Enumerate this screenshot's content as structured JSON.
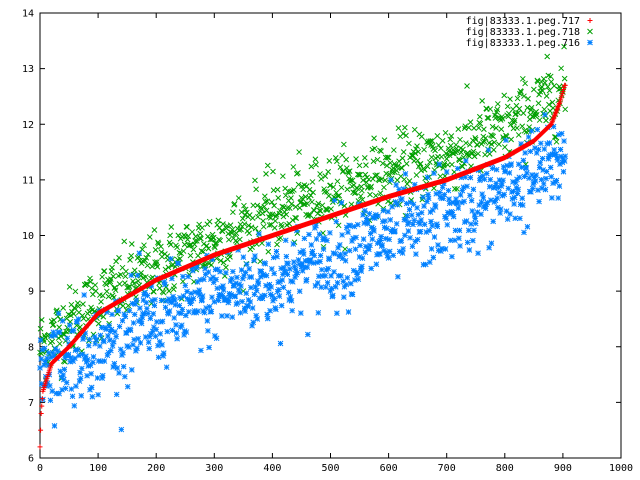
{
  "chart_data": {
    "type": "scatter",
    "title": "",
    "xlabel": "",
    "ylabel": "",
    "xlim": [
      0,
      1000
    ],
    "ylim": [
      6,
      14
    ],
    "x_ticks": [
      "0",
      "100",
      "200",
      "300",
      "400",
      "500",
      "600",
      "700",
      "800",
      "900",
      "1000"
    ],
    "y_ticks": [
      "6",
      "7",
      "8",
      "9",
      "10",
      "11",
      "12",
      "13",
      "14"
    ],
    "grid": false,
    "legend_position": "top-right",
    "n_points_per_series": 905,
    "series": [
      {
        "name": "fig|83333.1.peg.717",
        "color": "#ff0000",
        "marker": "plus",
        "description_points": [
          [
            0,
            6.2
          ],
          [
            2,
            6.8
          ],
          [
            5,
            7.2
          ],
          [
            20,
            7.7
          ],
          [
            50,
            8.0
          ],
          [
            100,
            8.6
          ],
          [
            200,
            9.2
          ],
          [
            300,
            9.65
          ],
          [
            400,
            10.0
          ],
          [
            500,
            10.35
          ],
          [
            600,
            10.7
          ],
          [
            700,
            11.0
          ],
          [
            800,
            11.4
          ],
          [
            850,
            11.7
          ],
          [
            880,
            12.0
          ],
          [
            895,
            12.4
          ],
          [
            903,
            12.7
          ]
        ]
      },
      {
        "name": "fig|83333.1.peg.718",
        "color": "#00a000",
        "marker": "x",
        "description_points": [
          [
            0,
            8.0
          ],
          [
            100,
            8.8
          ],
          [
            200,
            9.4
          ],
          [
            300,
            9.9
          ],
          [
            400,
            10.4
          ],
          [
            500,
            10.8
          ],
          [
            600,
            11.1
          ],
          [
            700,
            11.45
          ],
          [
            800,
            11.9
          ],
          [
            900,
            12.6
          ]
        ]
      },
      {
        "name": "fig|83333.1.peg.716",
        "color": "#0080ff",
        "marker": "star",
        "description_points": [
          [
            0,
            7.7
          ],
          [
            100,
            8.0
          ],
          [
            200,
            8.5
          ],
          [
            300,
            8.9
          ],
          [
            400,
            9.2
          ],
          [
            500,
            9.6
          ],
          [
            600,
            10.0
          ],
          [
            700,
            10.4
          ],
          [
            800,
            10.8
          ],
          [
            900,
            11.4
          ]
        ]
      }
    ]
  }
}
